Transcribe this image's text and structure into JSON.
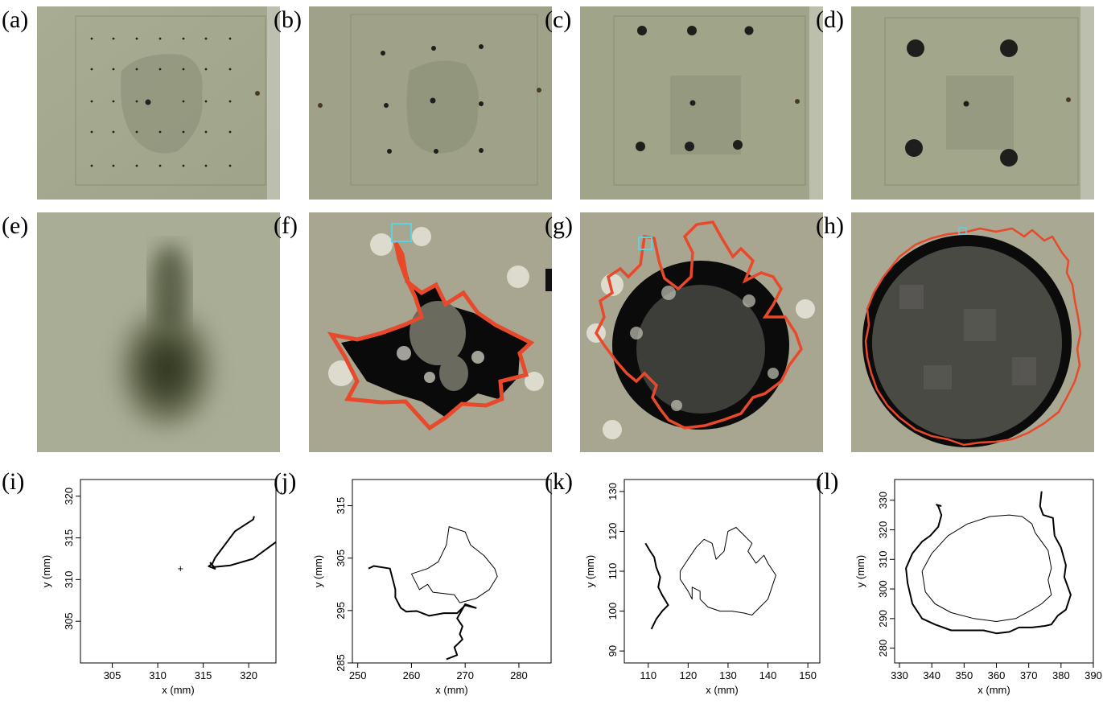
{
  "panels": {
    "a": "(a)",
    "b": "(b)",
    "c": "(c)",
    "d": "(d)",
    "e": "(e)",
    "f": "(f)",
    "g": "(g)",
    "h": "(h)",
    "i": "(i)",
    "j": "(j)",
    "k": "(k)",
    "l": "(l)"
  },
  "colors": {
    "photo_bg": "#a3a68c",
    "blob_dark": "#1c1c1a",
    "outline": "#e8492a",
    "marker": "#5fd3dc"
  },
  "chart_data": [
    {
      "panel": "(i)",
      "type": "line",
      "xlabel": "x (mm)",
      "ylabel": "y (mm)",
      "xlim": [
        301.5,
        323
      ],
      "ylim": [
        300,
        322
      ],
      "xticks": [
        305,
        310,
        315,
        320
      ],
      "yticks": [
        305,
        310,
        315,
        320
      ],
      "series": [
        {
          "style": "thick",
          "points": [
            [
              323,
              314.5
            ],
            [
              320.5,
              312.5
            ],
            [
              318,
              311.7
            ],
            [
              316.2,
              311.5
            ],
            [
              315.8,
              312
            ],
            [
              316.3,
              311.3
            ],
            [
              315.6,
              311.6
            ],
            [
              316,
              311.9
            ],
            [
              316.3,
              312.6
            ],
            [
              318.5,
              315.8
            ],
            [
              320.5,
              317.2
            ],
            [
              320.6,
              317.6
            ]
          ]
        }
      ],
      "markers": [
        {
          "x": 312.5,
          "y": 311.4,
          "symbol": "+"
        }
      ]
    },
    {
      "panel": "(j)",
      "type": "line",
      "xlabel": "x (mm)",
      "ylabel": "y (mm)",
      "xlim": [
        249,
        286
      ],
      "ylim": [
        285,
        320
      ],
      "xticks": [
        250,
        260,
        270,
        280
      ],
      "yticks": [
        285,
        295,
        305,
        315
      ],
      "series": [
        {
          "style": "thick",
          "points": [
            [
              252,
              303
            ],
            [
              253,
              303.5
            ],
            [
              256,
              303
            ],
            [
              256.5,
              301
            ],
            [
              257,
              299
            ],
            [
              257,
              297.5
            ],
            [
              258,
              295.5
            ],
            [
              259,
              294.8
            ],
            [
              261,
              294.9
            ],
            [
              263.3,
              294
            ],
            [
              266,
              294.5
            ],
            [
              268.5,
              294.5
            ],
            [
              270,
              296
            ],
            [
              272,
              295.5
            ],
            [
              270,
              296.2
            ],
            [
              268.5,
              293.5
            ],
            [
              269.5,
              292
            ],
            [
              269,
              290.5
            ],
            [
              269.5,
              289.5
            ],
            [
              268,
              288
            ],
            [
              268.5,
              286.5
            ],
            [
              266.5,
              285.7
            ]
          ]
        },
        {
          "style": "thin",
          "points": [
            [
              260,
              302
            ],
            [
              263,
              303
            ],
            [
              265,
              304.3
            ],
            [
              266.5,
              307.5
            ],
            [
              267,
              311
            ],
            [
              270,
              310
            ],
            [
              271,
              307.5
            ],
            [
              273.5,
              305.5
            ],
            [
              275.5,
              303
            ],
            [
              276,
              301.5
            ],
            [
              274.5,
              299
            ],
            [
              272,
              297.3
            ],
            [
              269,
              296.5
            ],
            [
              268,
              298
            ],
            [
              264,
              298.5
            ],
            [
              263,
              300
            ],
            [
              261.5,
              299
            ],
            [
              260,
              302
            ]
          ]
        }
      ]
    },
    {
      "panel": "(k)",
      "type": "line",
      "xlabel": "x (mm)",
      "ylabel": "y (mm)",
      "xlim": [
        104,
        153
      ],
      "ylim": [
        87,
        133
      ],
      "xticks": [
        110,
        120,
        130,
        140,
        150
      ],
      "yticks": [
        90,
        100,
        110,
        120,
        130
      ],
      "series": [
        {
          "style": "thick",
          "points": [
            [
              109.3,
              117
            ],
            [
              110.5,
              115
            ],
            [
              111.5,
              113.5
            ],
            [
              112,
              111
            ],
            [
              113,
              108.5
            ],
            [
              112.5,
              106
            ],
            [
              113.5,
              104
            ],
            [
              115,
              101.5
            ],
            [
              113.5,
              100
            ],
            [
              112,
              98
            ],
            [
              110.8,
              95.5
            ]
          ]
        },
        {
          "style": "thin",
          "points": [
            [
              118,
              110
            ],
            [
              120,
              113
            ],
            [
              122,
              116
            ],
            [
              124,
              118
            ],
            [
              126,
              117
            ],
            [
              127,
              113
            ],
            [
              129,
              115
            ],
            [
              130,
              120
            ],
            [
              132,
              121
            ],
            [
              134,
              119
            ],
            [
              136,
              117
            ],
            [
              135,
              115
            ],
            [
              137,
              112
            ],
            [
              139,
              114
            ],
            [
              140,
              112
            ],
            [
              142,
              109
            ],
            [
              141,
              106
            ],
            [
              140,
              103
            ],
            [
              138,
              101
            ],
            [
              136,
              99
            ],
            [
              134,
              99.5
            ],
            [
              131,
              100
            ],
            [
              128,
              100
            ],
            [
              125,
              101
            ],
            [
              123,
              103
            ],
            [
              123,
              105
            ],
            [
              121,
              106
            ],
            [
              121,
              103
            ],
            [
              120,
              105
            ],
            [
              118,
              108
            ],
            [
              118,
              110
            ]
          ]
        }
      ]
    },
    {
      "panel": "(l)",
      "type": "line",
      "xlabel": "x (mm)",
      "ylabel": "y (mm)",
      "xlim": [
        328.5,
        390
      ],
      "ylim": [
        275,
        337
      ],
      "xticks": [
        330,
        340,
        350,
        360,
        370,
        380,
        390
      ],
      "yticks": [
        280,
        290,
        300,
        310,
        320,
        330
      ],
      "series": [
        {
          "style": "thick",
          "points": [
            [
              374,
              333
            ],
            [
              373.5,
              328
            ],
            [
              374.5,
              325
            ],
            [
              377.5,
              324
            ],
            [
              378,
              318
            ],
            [
              380,
              314
            ],
            [
              381.5,
              308
            ],
            [
              381,
              304
            ],
            [
              383,
              298
            ],
            [
              381.5,
              293
            ],
            [
              379,
              291
            ],
            [
              377,
              288
            ],
            [
              375,
              287.5
            ],
            [
              371,
              287
            ],
            [
              367,
              287
            ],
            [
              364,
              285.5
            ],
            [
              360,
              285
            ],
            [
              356,
              286
            ],
            [
              351,
              286
            ],
            [
              346,
              286
            ],
            [
              341,
              288
            ],
            [
              337,
              290
            ],
            [
              334,
              295
            ],
            [
              332.5,
              302
            ],
            [
              332,
              307
            ],
            [
              334,
              312
            ],
            [
              337,
              316
            ],
            [
              339.5,
              318
            ],
            [
              342,
              321
            ],
            [
              343,
              325
            ],
            [
              342,
              328
            ],
            [
              341.5,
              328.5
            ],
            [
              343,
              328
            ]
          ]
        },
        {
          "style": "thin",
          "points": [
            [
              337,
              306
            ],
            [
              340,
              312
            ],
            [
              345,
              318
            ],
            [
              351,
              322
            ],
            [
              358,
              324.5
            ],
            [
              364,
              325
            ],
            [
              368,
              324.5
            ],
            [
              371,
              322
            ],
            [
              372,
              319
            ],
            [
              374,
              316
            ],
            [
              376,
              313
            ],
            [
              377,
              307
            ],
            [
              376,
              303
            ],
            [
              377,
              298
            ],
            [
              374,
              295
            ],
            [
              371,
              293
            ],
            [
              366,
              290
            ],
            [
              360,
              289
            ],
            [
              353,
              290
            ],
            [
              346,
              292
            ],
            [
              341,
              295
            ],
            [
              338,
              299
            ],
            [
              337,
              306
            ]
          ]
        }
      ]
    }
  ]
}
